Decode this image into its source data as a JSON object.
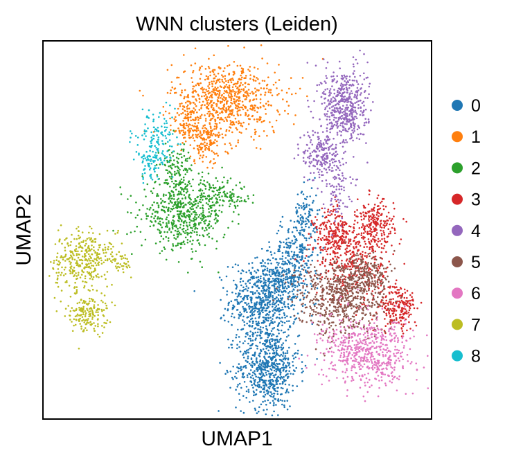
{
  "chart_data": {
    "type": "scatter",
    "title": "WNN clusters (Leiden)",
    "xlabel": "UMAP1",
    "ylabel": "UMAP2",
    "xlim": [
      0,
      100
    ],
    "ylim": [
      0,
      100
    ],
    "grid": false,
    "ticks": false,
    "legend": {
      "placement": "right",
      "entries": [
        "0",
        "1",
        "2",
        "3",
        "4",
        "5",
        "6",
        "7",
        "8"
      ]
    },
    "series": [
      {
        "name": "0",
        "color": "#1f77b4",
        "blobs": [
          {
            "cx": 57,
            "cy": 31,
            "sx": 4.5,
            "sy": 5.5,
            "n": 650
          },
          {
            "cx": 58,
            "cy": 13,
            "sx": 4.0,
            "sy": 5.5,
            "n": 650
          },
          {
            "cx": 65,
            "cy": 44,
            "sx": 3.0,
            "sy": 4.5,
            "n": 200
          },
          {
            "cx": 68,
            "cy": 54,
            "sx": 1.5,
            "sy": 4.0,
            "n": 90
          },
          {
            "cx": 62,
            "cy": 37,
            "sx": 3.5,
            "sy": 3.0,
            "n": 160
          }
        ]
      },
      {
        "name": "1",
        "color": "#ff7f0e",
        "blobs": [
          {
            "cx": 47,
            "cy": 85,
            "sx": 7.0,
            "sy": 5.0,
            "n": 750
          },
          {
            "cx": 42,
            "cy": 74,
            "sx": 3.0,
            "sy": 3.0,
            "n": 150
          },
          {
            "cx": 37,
            "cy": 78,
            "sx": 2.0,
            "sy": 2.5,
            "n": 70
          }
        ]
      },
      {
        "name": "2",
        "color": "#2ca02c",
        "blobs": [
          {
            "cx": 36,
            "cy": 54,
            "sx": 5.5,
            "sy": 4.5,
            "n": 550
          },
          {
            "cx": 34,
            "cy": 66,
            "sx": 2.0,
            "sy": 4.0,
            "n": 120
          },
          {
            "cx": 44,
            "cy": 60,
            "sx": 4.0,
            "sy": 2.0,
            "n": 70
          },
          {
            "cx": 49,
            "cy": 59,
            "sx": 2.0,
            "sy": 1.5,
            "n": 40
          }
        ]
      },
      {
        "name": "3",
        "color": "#d62728",
        "blobs": [
          {
            "cx": 76,
            "cy": 48,
            "sx": 3.0,
            "sy": 4.0,
            "n": 300
          },
          {
            "cx": 86,
            "cy": 51,
            "sx": 2.5,
            "sy": 3.5,
            "n": 220
          },
          {
            "cx": 92,
            "cy": 29,
            "sx": 2.5,
            "sy": 3.0,
            "n": 200
          },
          {
            "cx": 82,
            "cy": 40,
            "sx": 5.0,
            "sy": 5.0,
            "n": 250
          }
        ]
      },
      {
        "name": "4",
        "color": "#9467bd",
        "blobs": [
          {
            "cx": 78,
            "cy": 83,
            "sx": 3.0,
            "sy": 5.5,
            "n": 500
          },
          {
            "cx": 72,
            "cy": 70,
            "sx": 2.5,
            "sy": 3.5,
            "n": 200
          },
          {
            "cx": 76,
            "cy": 61,
            "sx": 1.8,
            "sy": 3.5,
            "n": 80
          }
        ]
      },
      {
        "name": "5",
        "color": "#8c564b",
        "blobs": [
          {
            "cx": 77,
            "cy": 32,
            "sx": 6.0,
            "sy": 5.0,
            "n": 650
          },
          {
            "cx": 84,
            "cy": 38,
            "sx": 3.0,
            "sy": 3.0,
            "n": 150
          }
        ]
      },
      {
        "name": "6",
        "color": "#e377c2",
        "blobs": [
          {
            "cx": 84,
            "cy": 17,
            "sx": 6.0,
            "sy": 4.5,
            "n": 600
          }
        ]
      },
      {
        "name": "7",
        "color": "#bcbd22",
        "blobs": [
          {
            "cx": 9,
            "cy": 42,
            "sx": 3.5,
            "sy": 4.0,
            "n": 280
          },
          {
            "cx": 11,
            "cy": 28,
            "sx": 2.5,
            "sy": 3.0,
            "n": 180
          },
          {
            "cx": 14,
            "cy": 44,
            "sx": 3.5,
            "sy": 2.0,
            "n": 60
          },
          {
            "cx": 20,
            "cy": 41,
            "sx": 1.2,
            "sy": 1.2,
            "n": 30
          }
        ]
      },
      {
        "name": "8",
        "color": "#17becf",
        "blobs": [
          {
            "cx": 29,
            "cy": 76,
            "sx": 3.0,
            "sy": 3.0,
            "n": 90
          },
          {
            "cx": 27,
            "cy": 68,
            "sx": 1.5,
            "sy": 2.5,
            "n": 60
          },
          {
            "cx": 30,
            "cy": 70,
            "sx": 1.5,
            "sy": 2.5,
            "n": 40
          }
        ]
      }
    ]
  }
}
